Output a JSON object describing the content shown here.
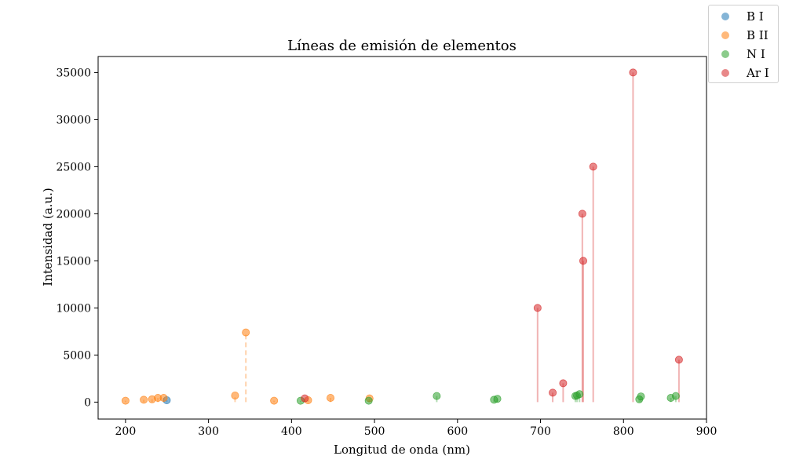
{
  "chart_data": {
    "type": "scatter",
    "title": "Líneas de emisión de elementos",
    "xlabel": "Longitud de onda (nm)",
    "ylabel": "Intensidad (a.u.)",
    "xlim": [
      167,
      900
    ],
    "ylim": [
      -1800,
      36700
    ],
    "xticks": [
      200,
      300,
      400,
      500,
      600,
      700,
      800,
      900
    ],
    "yticks": [
      0,
      5000,
      10000,
      15000,
      20000,
      25000,
      30000,
      35000
    ],
    "grid": false,
    "legend_position": "top-right outside",
    "series": [
      {
        "name": "B I",
        "color": "#1f77b4",
        "stem_style": "solid",
        "points": [
          [
            249.7,
            200
          ]
        ]
      },
      {
        "name": "B II",
        "color": "#ff7f0e",
        "stem_style": "dashed",
        "points": [
          [
            200.0,
            150
          ],
          [
            222.0,
            250
          ],
          [
            232.0,
            300
          ],
          [
            239.0,
            450
          ],
          [
            246.0,
            450
          ],
          [
            332.0,
            700
          ],
          [
            345.0,
            7400
          ],
          [
            379.0,
            150
          ],
          [
            420.0,
            200
          ],
          [
            447.0,
            450
          ],
          [
            494.0,
            400
          ]
        ]
      },
      {
        "name": "N I",
        "color": "#2ca02c",
        "stem_style": "solid",
        "points": [
          [
            411.0,
            150
          ],
          [
            493.0,
            150
          ],
          [
            575.0,
            650
          ],
          [
            644.0,
            250
          ],
          [
            648.0,
            350
          ],
          [
            742.0,
            650
          ],
          [
            744.0,
            700
          ],
          [
            747.0,
            850
          ],
          [
            819.0,
            300
          ],
          [
            821.0,
            600
          ],
          [
            857.0,
            450
          ],
          [
            863.0,
            650
          ]
        ]
      },
      {
        "name": "Ar I",
        "color": "#d62728",
        "stem_style": "solid",
        "points": [
          [
            416.0,
            400
          ],
          [
            696.5,
            10000
          ],
          [
            714.7,
            1000
          ],
          [
            727.3,
            2000
          ],
          [
            750.4,
            20000
          ],
          [
            751.5,
            15000
          ],
          [
            763.5,
            25000
          ],
          [
            811.5,
            35000
          ],
          [
            866.8,
            4500
          ]
        ]
      }
    ]
  }
}
